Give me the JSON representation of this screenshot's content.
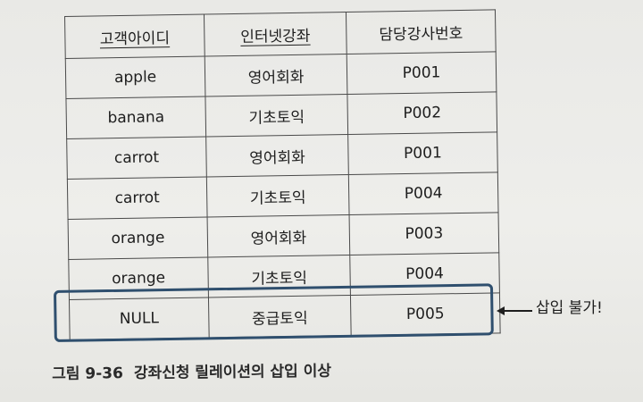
{
  "table": {
    "headers": [
      "고객아이디",
      "인터넷강좌",
      "담당강사번호"
    ],
    "rows": [
      [
        "apple",
        "영어회화",
        "P001"
      ],
      [
        "banana",
        "기초토익",
        "P002"
      ],
      [
        "carrot",
        "영어회화",
        "P001"
      ],
      [
        "carrot",
        "기초토익",
        "P004"
      ],
      [
        "orange",
        "영어회화",
        "P003"
      ],
      [
        "orange",
        "기초토익",
        "P004"
      ],
      [
        "NULL",
        "중급토익",
        "P005"
      ]
    ]
  },
  "annotation": {
    "note": "삽입 불가!",
    "highlight_color": "#2f4f6e"
  },
  "caption": {
    "number": "그림 9-36",
    "text": "강좌신청 릴레이션의 삽입 이상"
  }
}
